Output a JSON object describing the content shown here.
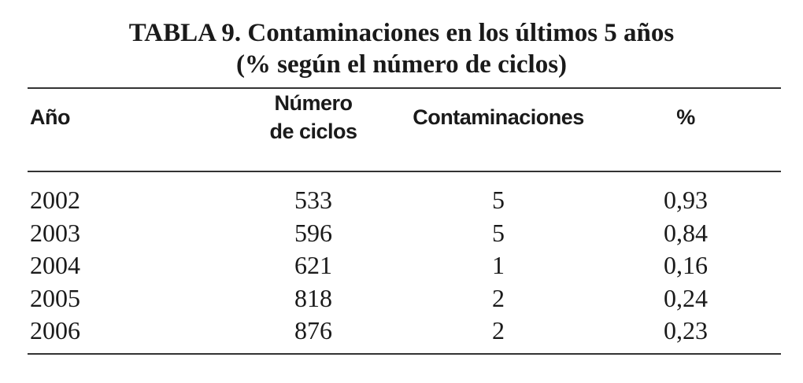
{
  "table": {
    "title": "TABLA 9. Contaminaciones en los últimos 5 años",
    "subtitle": "(% según el número de ciclos)",
    "headers": [
      [
        "Año"
      ],
      [
        "Número",
        "de ciclos"
      ],
      [
        "Contaminaciones"
      ],
      [
        "%"
      ]
    ],
    "rows": [
      [
        "2002",
        "533",
        "5",
        "0,93"
      ],
      [
        "2003",
        "596",
        "5",
        "0,84"
      ],
      [
        "2004",
        "621",
        "1",
        "0,16"
      ],
      [
        "2005",
        "818",
        "2",
        "0,24"
      ],
      [
        "2006",
        "876",
        "2",
        "0,23"
      ]
    ]
  }
}
